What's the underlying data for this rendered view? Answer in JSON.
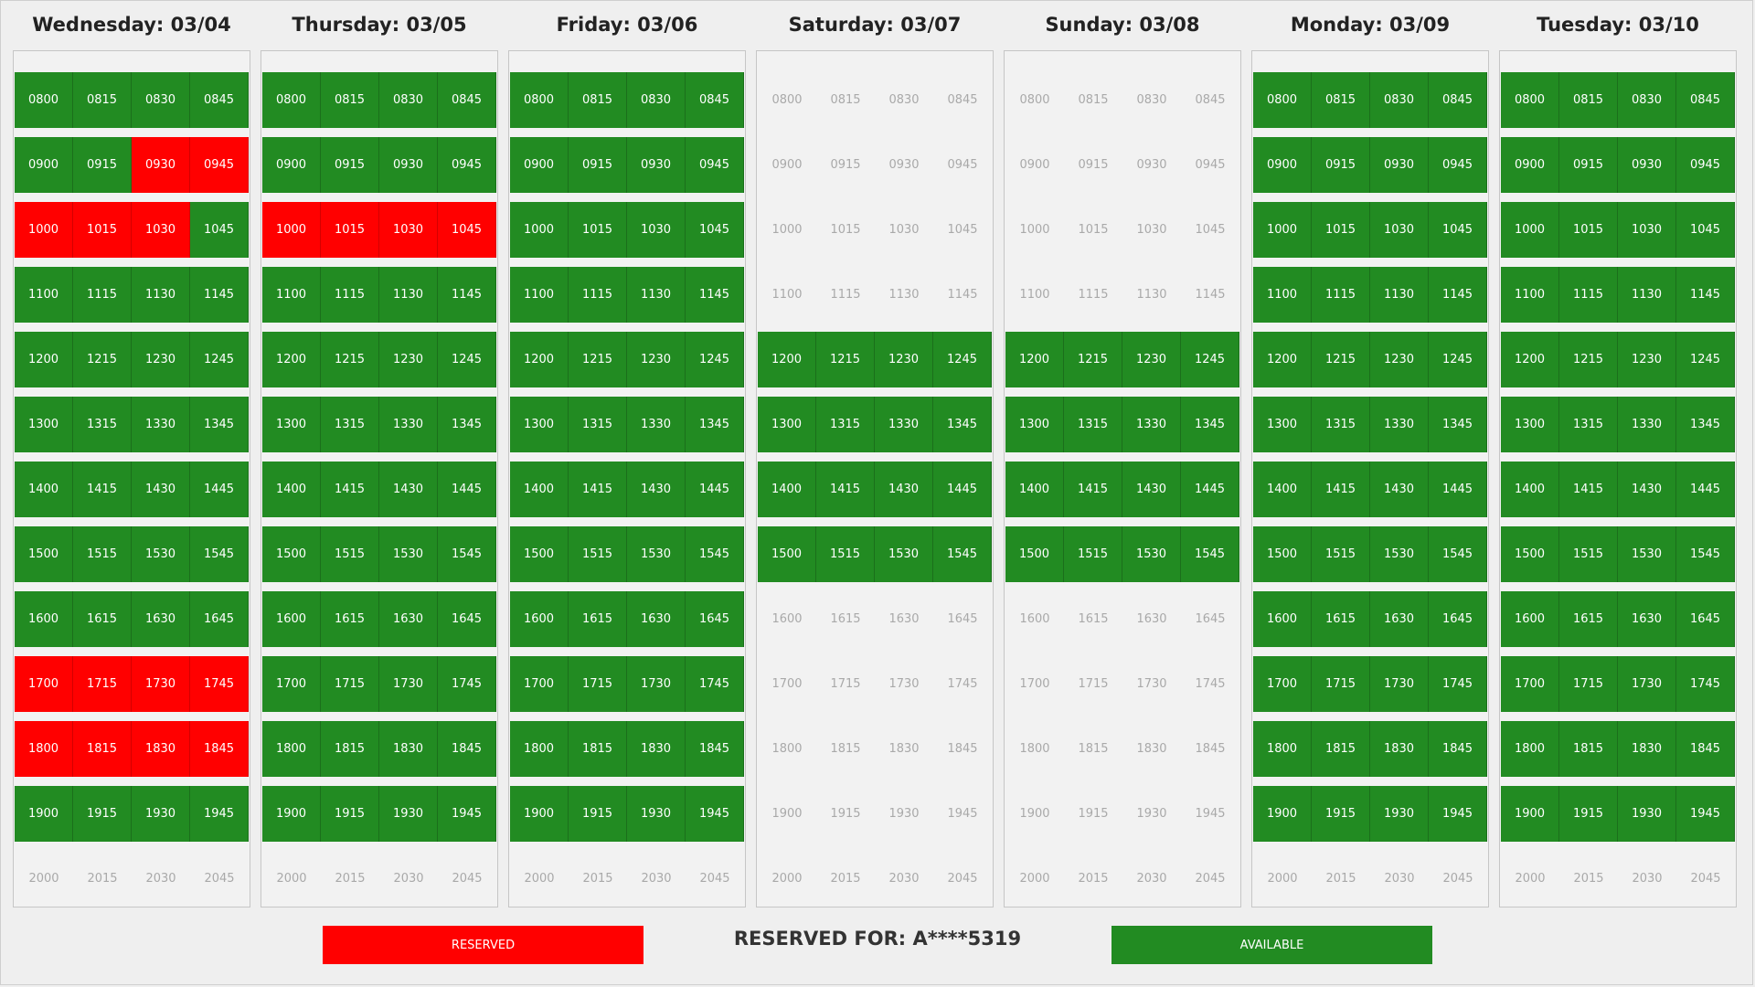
{
  "days": [
    {
      "label": "Wednesday: 03/04",
      "status": [
        "AAAA",
        "AARR",
        "RRRA",
        "AAAA",
        "AAAA",
        "AAAA",
        "AAAA",
        "AAAA",
        "AAAA",
        "RRRR",
        "RRRR",
        "AAAA",
        "CCCC"
      ]
    },
    {
      "label": "Thursday: 03/05",
      "status": [
        "AAAA",
        "AAAA",
        "RRRR",
        "AAAA",
        "AAAA",
        "AAAA",
        "AAAA",
        "AAAA",
        "AAAA",
        "AAAA",
        "AAAA",
        "AAAA",
        "CCCC"
      ]
    },
    {
      "label": "Friday: 03/06",
      "status": [
        "AAAA",
        "AAAA",
        "AAAA",
        "AAAA",
        "AAAA",
        "AAAA",
        "AAAA",
        "AAAA",
        "AAAA",
        "AAAA",
        "AAAA",
        "AAAA",
        "CCCC"
      ]
    },
    {
      "label": "Saturday: 03/07",
      "status": [
        "CCCC",
        "CCCC",
        "CCCC",
        "CCCC",
        "AAAA",
        "AAAA",
        "AAAA",
        "AAAA",
        "CCCC",
        "CCCC",
        "CCCC",
        "CCCC",
        "CCCC"
      ]
    },
    {
      "label": "Sunday: 03/08",
      "status": [
        "CCCC",
        "CCCC",
        "CCCC",
        "CCCC",
        "AAAA",
        "AAAA",
        "AAAA",
        "AAAA",
        "CCCC",
        "CCCC",
        "CCCC",
        "CCCC",
        "CCCC"
      ]
    },
    {
      "label": "Monday: 03/09",
      "status": [
        "AAAA",
        "AAAA",
        "AAAA",
        "AAAA",
        "AAAA",
        "AAAA",
        "AAAA",
        "AAAA",
        "AAAA",
        "AAAA",
        "AAAA",
        "AAAA",
        "CCCC"
      ]
    },
    {
      "label": "Tuesday: 03/10",
      "status": [
        "AAAA",
        "AAAA",
        "AAAA",
        "AAAA",
        "AAAA",
        "AAAA",
        "AAAA",
        "AAAA",
        "AAAA",
        "AAAA",
        "AAAA",
        "AAAA",
        "CCCC"
      ]
    }
  ],
  "times": [
    [
      "0800",
      "0815",
      "0830",
      "0845"
    ],
    [
      "0900",
      "0915",
      "0930",
      "0945"
    ],
    [
      "1000",
      "1015",
      "1030",
      "1045"
    ],
    [
      "1100",
      "1115",
      "1130",
      "1145"
    ],
    [
      "1200",
      "1215",
      "1230",
      "1245"
    ],
    [
      "1300",
      "1315",
      "1330",
      "1345"
    ],
    [
      "1400",
      "1415",
      "1430",
      "1445"
    ],
    [
      "1500",
      "1515",
      "1530",
      "1545"
    ],
    [
      "1600",
      "1615",
      "1630",
      "1645"
    ],
    [
      "1700",
      "1715",
      "1730",
      "1745"
    ],
    [
      "1800",
      "1815",
      "1830",
      "1845"
    ],
    [
      "1900",
      "1915",
      "1930",
      "1945"
    ],
    [
      "2000",
      "2015",
      "2030",
      "2045"
    ]
  ],
  "legend": {
    "reserved_label": "RESERVED",
    "available_label": "AVAILABLE",
    "reserved_for": "RESERVED FOR: A****5319"
  },
  "colors": {
    "reserved": "#ff0000",
    "available": "#228b22",
    "closed": "#f2f2f2"
  }
}
